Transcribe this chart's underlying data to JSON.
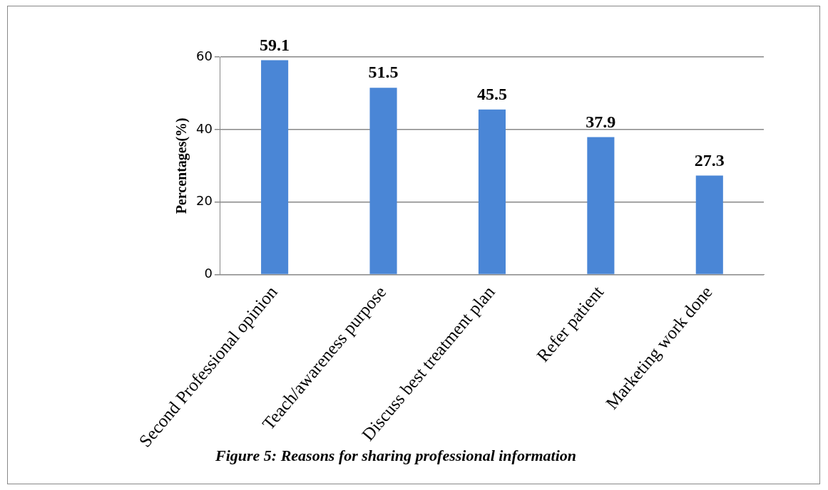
{
  "chart_data": {
    "type": "bar",
    "categories": [
      "Second Professional opinion",
      "Teach/awareness purpose",
      "Discuss best treatment plan",
      "Refer patient",
      "Marketing work done"
    ],
    "values": [
      59.1,
      51.5,
      45.5,
      37.9,
      27.3
    ],
    "color": "#4a86d6",
    "ylabel": "Percentages(%)",
    "ylim": [
      0,
      60
    ],
    "yticks": [
      0,
      20,
      40,
      60
    ],
    "grid": "y",
    "data_labels": true,
    "legend": false,
    "annotations": [
      "Figure 5: Reasons for sharing professional information"
    ]
  }
}
